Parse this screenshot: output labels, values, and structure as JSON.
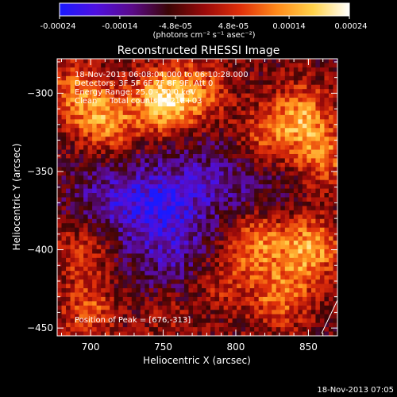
{
  "colorbar": {
    "ticks": [
      "-0.00024",
      "-0.00014",
      "-4.8e-05",
      "4.8e-05",
      "0.00014",
      "0.00024"
    ],
    "unit_label": "(photons cm⁻² s⁻¹ asec⁻²)",
    "range": [
      -0.00024,
      0.00024
    ],
    "stops": [
      "#1a1aff",
      "#4f10e0",
      "#5a0a8a",
      "#3a0505",
      "#9a0a0a",
      "#e0300a",
      "#ff8a1a",
      "#ffd24a",
      "#ffffff"
    ]
  },
  "chart_data": {
    "type": "heatmap",
    "title": "Reconstructed RHESSI Image",
    "xlabel": "Heliocentric X (arcsec)",
    "ylabel": "Heliocentric Y (arcsec)",
    "xlim": [
      677,
      870
    ],
    "ylim": [
      -455,
      -278
    ],
    "xticks": [
      700,
      750,
      800,
      850
    ],
    "yticks": [
      -300,
      -350,
      -400,
      -450
    ],
    "annotations": [
      "18-Nov-2013 06:08:04.000 to 06:10:28.000",
      "Detectors: 3F 5F 6F 7F 8F 9F, Att 0",
      "Energy Range: 25.0 - 50.0 keV",
      "Clean     Total counts: 4.21E+03"
    ],
    "peak_label": "Position of Peak = [676,-313]",
    "peak": [
      676,
      -313
    ],
    "hotspots": [
      {
        "x": 750,
        "y": -305,
        "amp": 1.0
      },
      {
        "x": 712,
        "y": -318,
        "amp": 0.75
      },
      {
        "x": 690,
        "y": -300,
        "amp": 0.6
      },
      {
        "x": 775,
        "y": -300,
        "amp": 0.55
      },
      {
        "x": 845,
        "y": -315,
        "amp": 0.75
      },
      {
        "x": 860,
        "y": -340,
        "amp": 0.6
      },
      {
        "x": 820,
        "y": -330,
        "amp": 0.5
      },
      {
        "x": 850,
        "y": -400,
        "amp": 0.85
      },
      {
        "x": 815,
        "y": -395,
        "amp": 0.7
      },
      {
        "x": 830,
        "y": -430,
        "amp": 0.6
      },
      {
        "x": 695,
        "y": -400,
        "amp": 0.45
      },
      {
        "x": 700,
        "y": -440,
        "amp": 0.5
      },
      {
        "x": 750,
        "y": -440,
        "amp": 0.45
      },
      {
        "x": 790,
        "y": -420,
        "amp": 0.35
      }
    ],
    "coldspots": [
      {
        "x": 745,
        "y": -370,
        "amp": 1.0
      },
      {
        "x": 710,
        "y": -370,
        "amp": 0.8
      },
      {
        "x": 780,
        "y": -355,
        "amp": 0.7
      },
      {
        "x": 760,
        "y": -400,
        "amp": 0.6
      },
      {
        "x": 745,
        "y": -430,
        "amp": 0.5
      },
      {
        "x": 820,
        "y": -360,
        "amp": 0.5
      }
    ]
  },
  "footer_timestamp": "18-Nov-2013 07:05"
}
